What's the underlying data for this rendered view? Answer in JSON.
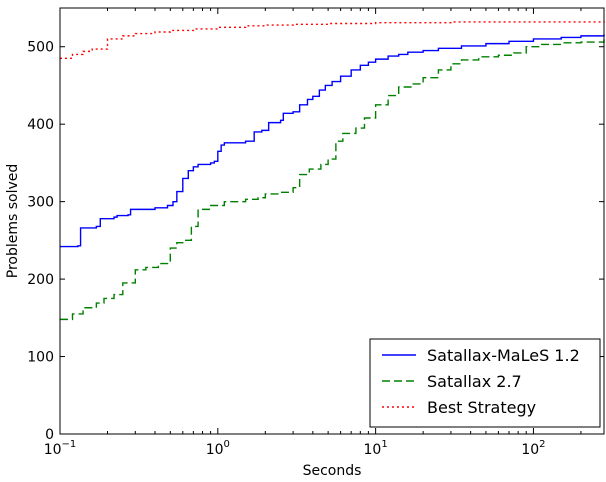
{
  "chart_data": {
    "type": "line",
    "title": "",
    "xlabel": "Seconds",
    "ylabel": "Problems solved",
    "xscale": "log",
    "xlim": [
      0.1,
      280
    ],
    "ylim": [
      0,
      550
    ],
    "x_ticks": [
      0.1,
      1,
      10,
      100
    ],
    "x_tick_labels": [
      {
        "base": "10",
        "exp": "−1"
      },
      {
        "base": "10",
        "exp": "0"
      },
      {
        "base": "10",
        "exp": "1"
      },
      {
        "base": "10",
        "exp": "2"
      }
    ],
    "y_ticks": [
      0,
      100,
      200,
      300,
      400,
      500
    ],
    "y_tick_labels": [
      "0",
      "100",
      "200",
      "300",
      "400",
      "500"
    ],
    "grid": false,
    "legend_position": "lower-right",
    "series": [
      {
        "name": "Satallax-MaLeS 1.2",
        "color": "#0000ff",
        "style": "solid",
        "points": [
          [
            0.1,
            242
          ],
          [
            0.13,
            243
          ],
          [
            0.135,
            266
          ],
          [
            0.17,
            268
          ],
          [
            0.18,
            278
          ],
          [
            0.22,
            280
          ],
          [
            0.23,
            282
          ],
          [
            0.27,
            283
          ],
          [
            0.28,
            290
          ],
          [
            0.4,
            292
          ],
          [
            0.48,
            295
          ],
          [
            0.52,
            300
          ],
          [
            0.55,
            313
          ],
          [
            0.6,
            330
          ],
          [
            0.65,
            340
          ],
          [
            0.7,
            345
          ],
          [
            0.75,
            348
          ],
          [
            0.9,
            350
          ],
          [
            0.95,
            352
          ],
          [
            1.0,
            365
          ],
          [
            1.05,
            373
          ],
          [
            1.1,
            376
          ],
          [
            1.5,
            378
          ],
          [
            1.7,
            390
          ],
          [
            1.9,
            392
          ],
          [
            2.1,
            402
          ],
          [
            2.5,
            405
          ],
          [
            2.6,
            414
          ],
          [
            3.0,
            416
          ],
          [
            3.3,
            425
          ],
          [
            3.7,
            432
          ],
          [
            4.0,
            436
          ],
          [
            4.4,
            444
          ],
          [
            4.8,
            450
          ],
          [
            5.3,
            455
          ],
          [
            6.0,
            462
          ],
          [
            7.0,
            470
          ],
          [
            8.0,
            476
          ],
          [
            9.0,
            480
          ],
          [
            10.0,
            484
          ],
          [
            12.0,
            488
          ],
          [
            14.0,
            490
          ],
          [
            16.0,
            493
          ],
          [
            20.0,
            495
          ],
          [
            25.0,
            498
          ],
          [
            35.0,
            501
          ],
          [
            50.0,
            504
          ],
          [
            70.0,
            507
          ],
          [
            100.0,
            510
          ],
          [
            150.0,
            512
          ],
          [
            200.0,
            514
          ],
          [
            280.0,
            516
          ]
        ]
      },
      {
        "name": "Satallax 2.7",
        "color": "#008000",
        "style": "dashed",
        "points": [
          [
            0.1,
            148
          ],
          [
            0.12,
            155
          ],
          [
            0.14,
            163
          ],
          [
            0.17,
            169
          ],
          [
            0.19,
            175
          ],
          [
            0.22,
            180
          ],
          [
            0.25,
            195
          ],
          [
            0.3,
            212
          ],
          [
            0.35,
            215
          ],
          [
            0.42,
            220
          ],
          [
            0.5,
            240
          ],
          [
            0.55,
            247
          ],
          [
            0.6,
            250
          ],
          [
            0.68,
            268
          ],
          [
            0.75,
            290
          ],
          [
            0.9,
            295
          ],
          [
            1.1,
            300
          ],
          [
            1.5,
            303
          ],
          [
            1.8,
            305
          ],
          [
            2.0,
            310
          ],
          [
            2.5,
            312
          ],
          [
            3.0,
            318
          ],
          [
            3.3,
            335
          ],
          [
            3.8,
            342
          ],
          [
            4.5,
            348
          ],
          [
            5.0,
            355
          ],
          [
            5.6,
            378
          ],
          [
            6.2,
            388
          ],
          [
            7.5,
            395
          ],
          [
            8.5,
            408
          ],
          [
            10.0,
            425
          ],
          [
            12.0,
            437
          ],
          [
            14.0,
            448
          ],
          [
            17.0,
            452
          ],
          [
            20.0,
            460
          ],
          [
            25.0,
            470
          ],
          [
            30.0,
            478
          ],
          [
            35.0,
            483
          ],
          [
            45.0,
            487
          ],
          [
            60.0,
            489
          ],
          [
            75.0,
            492
          ],
          [
            90.0,
            500
          ],
          [
            110.0,
            503
          ],
          [
            150.0,
            505
          ],
          [
            200.0,
            506
          ],
          [
            280.0,
            510
          ]
        ]
      },
      {
        "name": "Best Strategy",
        "color": "#ff0000",
        "style": "dotted",
        "points": [
          [
            0.1,
            485
          ],
          [
            0.12,
            490
          ],
          [
            0.14,
            494
          ],
          [
            0.16,
            497
          ],
          [
            0.2,
            510
          ],
          [
            0.25,
            514
          ],
          [
            0.3,
            517
          ],
          [
            0.4,
            519
          ],
          [
            0.5,
            521
          ],
          [
            0.7,
            523
          ],
          [
            1.0,
            525
          ],
          [
            1.5,
            527
          ],
          [
            2.0,
            528
          ],
          [
            3.0,
            529
          ],
          [
            5.0,
            530
          ],
          [
            10.0,
            531
          ],
          [
            30.0,
            532
          ],
          [
            100.0,
            532
          ],
          [
            280.0,
            533
          ]
        ]
      }
    ]
  }
}
